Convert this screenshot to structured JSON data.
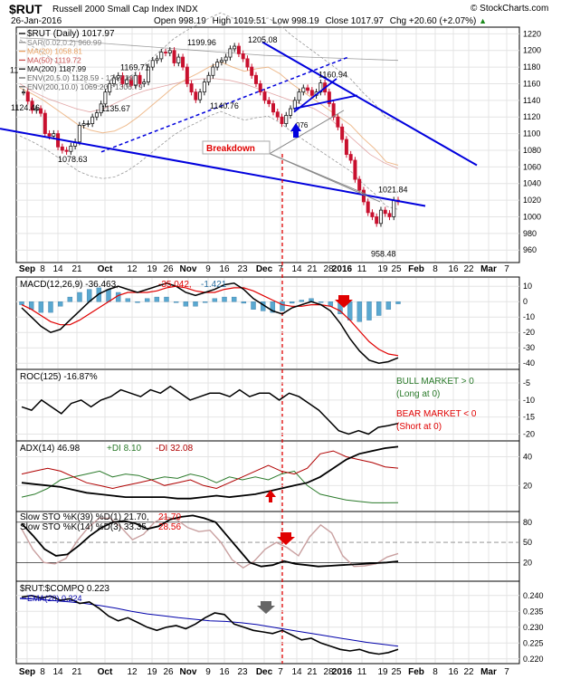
{
  "header": {
    "symbol": "$RUT",
    "name": "Russell 2000 Small Cap Index",
    "exchange": "INDX",
    "date": "26-Jan-2016",
    "open_label": "Open",
    "open": "998.19",
    "high_label": "High",
    "high": "1019.51",
    "low_label": "Low",
    "low": "998.19",
    "close_label": "Close",
    "close": "1017.97",
    "chg_label": "Chg",
    "chg": "+20.60 (+2.07%)",
    "watermark": "© StockCharts.com",
    "arrow_up": "▲"
  },
  "legends": {
    "price_title": "$RUT (Daily) 1017.97",
    "sar": "SAR(0.02,0.2) 960.99",
    "ma20": "MA(20) 1058.81",
    "ma50": "MA(50) 1119.72",
    "ma200": "MA(200) 1187.99",
    "env1": "ENV(20,5.0) 1128.59 - 1247.39",
    "env2": "ENV(200,10.0) 1069.20 - 1306.79",
    "macd_a": "MACD(12,26,9) -36.463,",
    "macd_b": "-35.042,",
    "macd_c": "-1.421",
    "roc": "ROC(125) -16.87%",
    "adx_a": "ADX(14) 46.98",
    "adx_b": "+DI 8.10",
    "adx_c": "-DI 32.08",
    "sto1_a": "Slow STO %K(39) %D(1) 21.70,",
    "sto1_b": "21.70",
    "sto2_a": "Slow STO %K(14) %D(3) 33.35,",
    "sto2_b": "28.56",
    "ratio": "$RUT:$COMPQ 0.223",
    "ema": "EMA(20) 0.224"
  },
  "annotations": {
    "breakdown": "Breakdown",
    "bull1": "BULL MARKET > 0",
    "bull2": "(Long at 0)",
    "bear1": "BEAR MARKET < 0",
    "bear2": "(Short at 0)",
    "partial_label": "11",
    "partial_label2": "076"
  },
  "colors": {
    "up_candle": "#1a1a1a",
    "down_candle": "#c8102e",
    "trendline": "#0000dd",
    "annotation_red": "#e00000",
    "ma20": "#e8a060",
    "ma50": "#c85050",
    "ma200": "#111111",
    "env": "#999999",
    "macd_hist": "#5aa8d0",
    "signal": "#e00000",
    "green": "#2a7a2a",
    "ema": "#0000aa"
  },
  "chart_data": [
    {
      "type": "candlestick",
      "title": "$RUT (Daily)",
      "x_ticks": [
        "Sep",
        "8",
        "14",
        "21",
        "Oct",
        "12",
        "19",
        "26",
        "Nov",
        "9",
        "16",
        "23",
        "Dec",
        "7",
        "14",
        "21",
        "28",
        "2016",
        "11",
        "19",
        "25",
        "Feb",
        "8",
        "16",
        "22",
        "Mar",
        "7"
      ],
      "y_ticks": [
        960,
        980,
        1000,
        1020,
        1040,
        1060,
        1080,
        1100,
        1120,
        1140,
        1160,
        1180,
        1200,
        1220
      ],
      "ylim": [
        945,
        1228
      ],
      "price_labels": [
        "1124.46",
        "1078.63",
        "1135.67",
        "1169.71",
        "1199.96",
        "1140.76",
        "1205.08",
        "1160.94",
        "1021.84",
        "958.48"
      ],
      "close_series": [
        1150,
        1139,
        1128,
        1130,
        1124.46,
        1100,
        1097,
        1100,
        1084,
        1080,
        1078.63,
        1085,
        1090,
        1110,
        1112,
        1112,
        1120,
        1125,
        1135.67,
        1150,
        1160,
        1167,
        1169.71,
        1160,
        1165,
        1158,
        1170,
        1160,
        1162,
        1180,
        1188,
        1190,
        1198,
        1197,
        1199.96,
        1185,
        1192,
        1180,
        1160,
        1150,
        1140.76,
        1150,
        1162,
        1170,
        1180,
        1186,
        1188,
        1192,
        1202,
        1205.08,
        1196,
        1190,
        1180,
        1170,
        1160,
        1150,
        1140,
        1136,
        1126,
        1120,
        1112,
        1122,
        1130,
        1140,
        1150,
        1155,
        1152,
        1146,
        1150,
        1160.94,
        1150,
        1136,
        1120,
        1108,
        1093,
        1075,
        1068,
        1045,
        1032,
        1018,
        1005,
        1000,
        992,
        1008,
        1004,
        1000,
        1020,
        1017.97
      ],
      "ma20_series": [
        1155,
        1148,
        1140,
        1130,
        1120,
        1110,
        1104,
        1101,
        1103,
        1110,
        1120,
        1132,
        1144,
        1156,
        1165,
        1172,
        1180,
        1186,
        1180,
        1175,
        1178,
        1180,
        1172,
        1160,
        1150,
        1140,
        1130,
        1120,
        1110,
        1095,
        1082,
        1066,
        1062
      ],
      "ma50_series": [
        1160,
        1150,
        1142,
        1136,
        1130,
        1126,
        1130,
        1138,
        1146,
        1152,
        1156,
        1160,
        1164,
        1166,
        1166,
        1164,
        1160,
        1154,
        1148,
        1142,
        1136,
        1130,
        1120,
        1105,
        1090,
        1075,
        1065,
        1058
      ],
      "ma200_series": [
        1215,
        1214,
        1212,
        1210,
        1208,
        1206,
        1204,
        1202,
        1200,
        1198,
        1196,
        1194,
        1193,
        1192,
        1191,
        1190,
        1189,
        1188
      ]
    },
    {
      "type": "line",
      "title": "MACD(12,26,9)",
      "y_ticks": [
        -40,
        -30,
        -20,
        -10,
        0,
        10
      ],
      "ylim": [
        -44,
        16
      ],
      "macd": [
        -4,
        -10,
        -16,
        -20,
        -18,
        -12,
        -6,
        0,
        5,
        8,
        10,
        8,
        6,
        8,
        10,
        12,
        10,
        6,
        4,
        6,
        8,
        11,
        12,
        8,
        2,
        -2,
        -6,
        -8,
        -4,
        -2,
        0,
        -2,
        -6,
        -14,
        -24,
        -32,
        -38,
        -40,
        -39,
        -36.46
      ],
      "signal": [
        -2,
        -5,
        -9,
        -13,
        -15,
        -15,
        -12,
        -8,
        -4,
        0,
        4,
        6,
        6,
        6,
        7,
        9,
        10,
        9,
        7,
        6,
        6,
        8,
        9,
        9,
        7,
        4,
        1,
        -2,
        -3,
        -3,
        -2,
        -2,
        -3,
        -6,
        -12,
        -19,
        -26,
        -31,
        -34,
        -35.04
      ]
    },
    {
      "type": "line",
      "title": "ROC(125)",
      "y_ticks": [
        -20,
        -15,
        -10,
        -5
      ],
      "ylim": [
        -22,
        -1
      ],
      "values": [
        -12,
        -13,
        -10,
        -12,
        -14,
        -11,
        -10,
        -12,
        -10,
        -9,
        -7,
        -8,
        -9,
        -7,
        -8,
        -6,
        -8,
        -10,
        -9,
        -8,
        -8,
        -9,
        -7,
        -9,
        -8,
        -8,
        -10,
        -8,
        -9,
        -11,
        -13,
        -16,
        -19,
        -20,
        -19,
        -20,
        -18,
        -17.5,
        -16.87
      ]
    },
    {
      "type": "line",
      "title": "ADX(14)",
      "y_ticks": [
        20,
        40
      ],
      "ylim": [
        2,
        51
      ],
      "adx": [
        22,
        21,
        20,
        19,
        17,
        15,
        14,
        13,
        12,
        12,
        12,
        12,
        11,
        11,
        12,
        13,
        12,
        13,
        14,
        16,
        18,
        20,
        22,
        26,
        32,
        38,
        42,
        44,
        46,
        46.98
      ],
      "plus_di": [
        12,
        14,
        18,
        24,
        26,
        28,
        30,
        26,
        28,
        27,
        24,
        26,
        25,
        28,
        26,
        22,
        26,
        24,
        26,
        24,
        28,
        30,
        20,
        14,
        12,
        10,
        9,
        8,
        8,
        8.1
      ],
      "minus_di": [
        28,
        30,
        32,
        30,
        26,
        22,
        20,
        18,
        20,
        22,
        24,
        20,
        22,
        24,
        20,
        18,
        22,
        26,
        30,
        34,
        30,
        28,
        32,
        42,
        44,
        40,
        38,
        36,
        33,
        32.08
      ]
    },
    {
      "type": "line",
      "title": "Slow STO",
      "y_ticks": [
        20,
        50,
        80
      ],
      "ylim": [
        -8,
        96
      ],
      "k39": [
        78,
        60,
        40,
        30,
        32,
        45,
        60,
        72,
        80,
        82,
        78,
        70,
        74,
        84,
        88,
        90,
        86,
        80,
        60,
        40,
        20,
        14,
        16,
        22,
        18,
        16,
        14,
        15,
        16,
        17,
        18,
        19,
        20,
        21.7
      ],
      "k14": [
        70,
        40,
        20,
        18,
        26,
        52,
        72,
        86,
        86,
        72,
        54,
        62,
        80,
        88,
        84,
        72,
        66,
        68,
        50,
        24,
        12,
        22,
        40,
        50,
        42,
        30,
        58,
        76,
        64,
        30,
        14,
        15,
        18,
        28,
        33.35
      ]
    },
    {
      "type": "line",
      "title": "$RUT:$COMPQ",
      "y_ticks": [
        0.22,
        0.225,
        0.23,
        0.235,
        0.24
      ],
      "ylim": [
        0.2185,
        0.2445
      ],
      "ratio": [
        0.2395,
        0.24,
        0.2392,
        0.2398,
        0.2385,
        0.239,
        0.2375,
        0.238,
        0.236,
        0.2335,
        0.232,
        0.233,
        0.2315,
        0.23,
        0.229,
        0.23,
        0.2305,
        0.2295,
        0.231,
        0.233,
        0.2345,
        0.234,
        0.231,
        0.23,
        0.229,
        0.2285,
        0.228,
        0.229,
        0.2275,
        0.226,
        0.2265,
        0.225,
        0.224,
        0.223,
        0.2225,
        0.223,
        0.222,
        0.2215,
        0.222,
        0.223
      ],
      "ema": [
        0.239,
        0.2388,
        0.2384,
        0.238,
        0.2375,
        0.2368,
        0.236,
        0.235,
        0.2342,
        0.2336,
        0.233,
        0.2325,
        0.232,
        0.2318,
        0.2314,
        0.2308,
        0.23,
        0.2292,
        0.2284,
        0.2276,
        0.2268,
        0.226,
        0.2252,
        0.2246,
        0.224
      ]
    }
  ]
}
